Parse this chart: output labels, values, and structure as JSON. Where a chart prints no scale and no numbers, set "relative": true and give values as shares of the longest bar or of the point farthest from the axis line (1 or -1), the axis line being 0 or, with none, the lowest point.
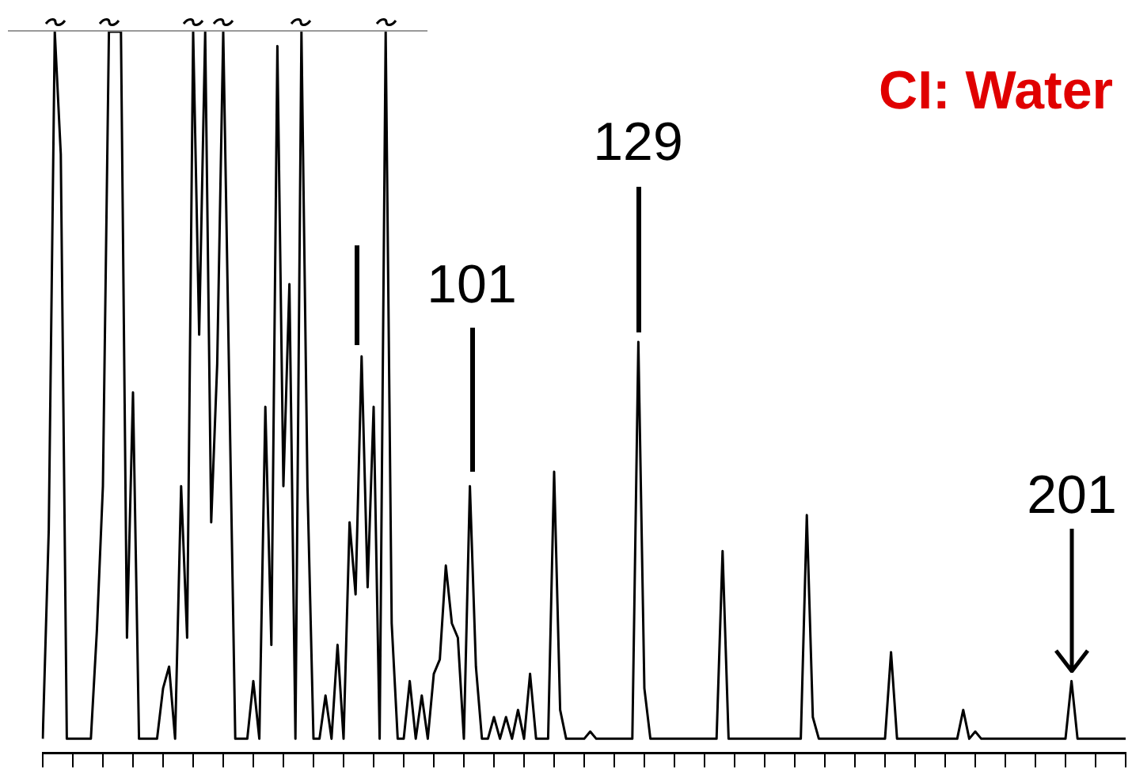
{
  "chart_data": {
    "type": "line",
    "relative": true,
    "title": "CI: Water",
    "categories": [
      null,
      null,
      null,
      null,
      null,
      null,
      null,
      null,
      null,
      null,
      null,
      null,
      null,
      null,
      null,
      null,
      null,
      null,
      null,
      null,
      null,
      null,
      null,
      null,
      null,
      null,
      null,
      null,
      null,
      null,
      null,
      null,
      null,
      null,
      null,
      null,
      null,
      null,
      null,
      null,
      null,
      null,
      null,
      null,
      null,
      null,
      null,
      null,
      null,
      null,
      null,
      null,
      null,
      null,
      null,
      null,
      null,
      null,
      null,
      null,
      null,
      null,
      null,
      null,
      null,
      null,
      null,
      null,
      null,
      null,
      null,
      null,
      null,
      null,
      null,
      null,
      null,
      null,
      null,
      null,
      null,
      null,
      null,
      null,
      null,
      null,
      null,
      null,
      null,
      null,
      null,
      null,
      null,
      null,
      null,
      null,
      null,
      null,
      null,
      null,
      null,
      null,
      null,
      null,
      null,
      null,
      null,
      null,
      null,
      null,
      null,
      null,
      null,
      null,
      null,
      null,
      null,
      null,
      null,
      null,
      null,
      null,
      null,
      null,
      null,
      null,
      null,
      null,
      null,
      null,
      null,
      null,
      null,
      null,
      null,
      null,
      null,
      null,
      null,
      null,
      null,
      null,
      null,
      null,
      null,
      null,
      null,
      null,
      null,
      null,
      null,
      null,
      null,
      null,
      null,
      null,
      null,
      null,
      null,
      null,
      null,
      null,
      null,
      null,
      null,
      null,
      null,
      null,
      null,
      null,
      null,
      null,
      null,
      null,
      null,
      null,
      null,
      null,
      null,
      null,
      null
    ],
    "series": [
      {
        "color": "#000000",
        "values": [
          0.02,
          0.31,
          1,
          0.83,
          0.02,
          0.02,
          0.02,
          0.02,
          0.02,
          0.17,
          0.37,
          1,
          1,
          1,
          0.16,
          0.5,
          0.02,
          0.02,
          0.02,
          0.02,
          0.09,
          0.12,
          0.02,
          0.37,
          0.16,
          1,
          0.58,
          1,
          0.32,
          0.54,
          1,
          0.51,
          0.02,
          0.02,
          0.02,
          0.1,
          0.02,
          0.48,
          0.15,
          0.98,
          0.37,
          0.65,
          0.02,
          1,
          0.37,
          0.02,
          0.02,
          0.08,
          0.02,
          0.15,
          0.02,
          0.32,
          0.22,
          0.55,
          0.23,
          0.48,
          0.02,
          1,
          0.18,
          0.02,
          0.02,
          0.1,
          0.02,
          0.08,
          0.02,
          0.11,
          0.13,
          0.26,
          0.18,
          0.16,
          0.02,
          0.37,
          0.12,
          0.02,
          0.02,
          0.05,
          0.02,
          0.05,
          0.02,
          0.06,
          0.02,
          0.11,
          0.02,
          0.02,
          0.02,
          0.39,
          0.06,
          0.02,
          0.02,
          0.02,
          0.02,
          0.03,
          0.02,
          0.02,
          0.02,
          0.02,
          0.02,
          0.02,
          0.02,
          0.57,
          0.09,
          0.02,
          0.02,
          0.02,
          0.02,
          0.02,
          0.02,
          0.02,
          0.02,
          0.02,
          0.02,
          0.02,
          0.02,
          0.28,
          0.02,
          0.02,
          0.02,
          0.02,
          0.02,
          0.02,
          0.02,
          0.02,
          0.02,
          0.02,
          0.02,
          0.02,
          0.02,
          0.33,
          0.05,
          0.02,
          0.02,
          0.02,
          0.02,
          0.02,
          0.02,
          0.02,
          0.02,
          0.02,
          0.02,
          0.02,
          0.02,
          0.14,
          0.02,
          0.02,
          0.02,
          0.02,
          0.02,
          0.02,
          0.02,
          0.02,
          0.02,
          0.02,
          0.02,
          0.06,
          0.02,
          0.03,
          0.02,
          0.02,
          0.02,
          0.02,
          0.02,
          0.02,
          0.02,
          0.02,
          0.02,
          0.02,
          0.02,
          0.02,
          0.02,
          0.02,
          0.02,
          0.1,
          0.02,
          0.02,
          0.02,
          0.02,
          0.02,
          0.02,
          0.02,
          0.02,
          0.02
        ]
      }
    ],
    "grid": false,
    "legend": false,
    "annotations": [
      "101",
      "129",
      "201"
    ]
  }
}
